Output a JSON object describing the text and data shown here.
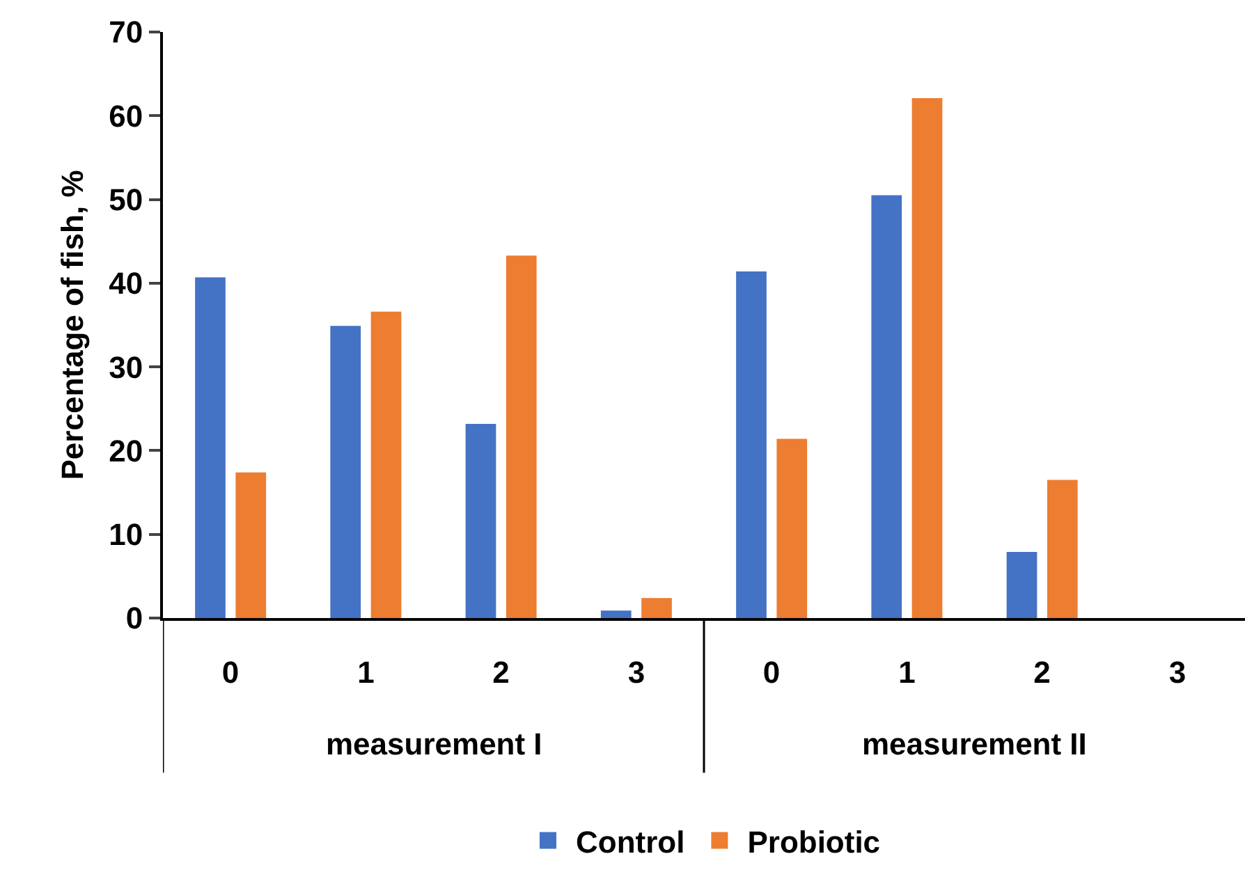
{
  "chart_data": {
    "type": "bar",
    "ylabel": "Percentage of fish, %",
    "categories": [
      "0",
      "1",
      "2",
      "3",
      "0",
      "1",
      "2",
      "3"
    ],
    "series": [
      {
        "name": "Control",
        "color": "#4472c4",
        "values": [
          40.7,
          34.9,
          23.2,
          0.9,
          41.4,
          50.5,
          7.9,
          0
        ]
      },
      {
        "name": "Probiotic",
        "color": "#ed7d31",
        "values": [
          17.4,
          36.6,
          43.3,
          2.4,
          21.4,
          62.1,
          16.5,
          0
        ]
      }
    ],
    "annotations": [
      "measurement I",
      "measurement II"
    ],
    "ylim": [
      0,
      70
    ],
    "yticks": [
      0,
      10,
      20,
      30,
      40,
      50,
      60,
      70
    ],
    "legend": "bottom"
  }
}
